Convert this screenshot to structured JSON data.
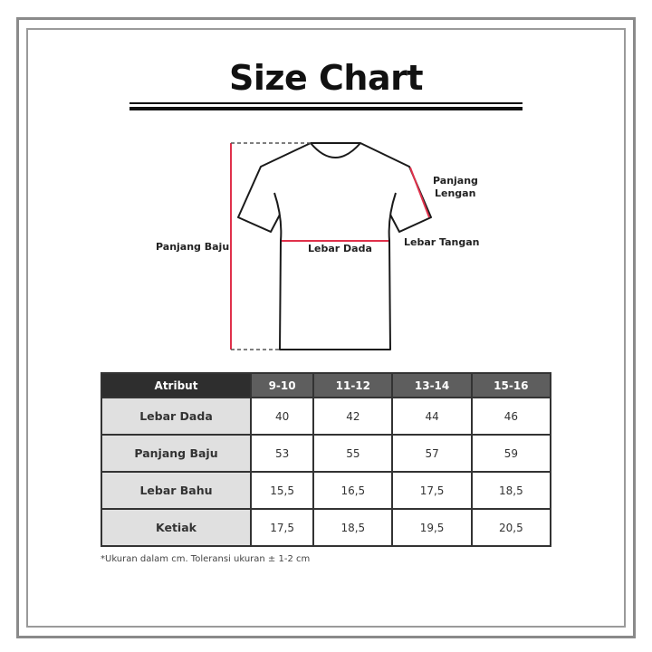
{
  "title": "Size Chart",
  "diagram": {
    "labels": {
      "panjang_baju": "Panjang Baju",
      "lebar_dada": "Lebar Dada",
      "panjang_lengan_1": "Panjang",
      "panjang_lengan_2": "Lengan",
      "lebar_tangan": "Lebar Tangan"
    },
    "measure_color": "#e0314b"
  },
  "table": {
    "headers": [
      "Atribut",
      "9-10",
      "11-12",
      "13-14",
      "15-16"
    ],
    "rows": [
      {
        "label": "Lebar Dada",
        "values": [
          "40",
          "42",
          "44",
          "46"
        ]
      },
      {
        "label": "Panjang Baju",
        "values": [
          "53",
          "55",
          "57",
          "59"
        ]
      },
      {
        "label": "Lebar Bahu",
        "values": [
          "15,5",
          "16,5",
          "17,5",
          "18,5"
        ]
      },
      {
        "label": "Ketiak",
        "values": [
          "17,5",
          "18,5",
          "19,5",
          "20,5"
        ]
      }
    ]
  },
  "note": "*Ukuran dalam cm. Toleransi ukuran ± 1-2 cm"
}
